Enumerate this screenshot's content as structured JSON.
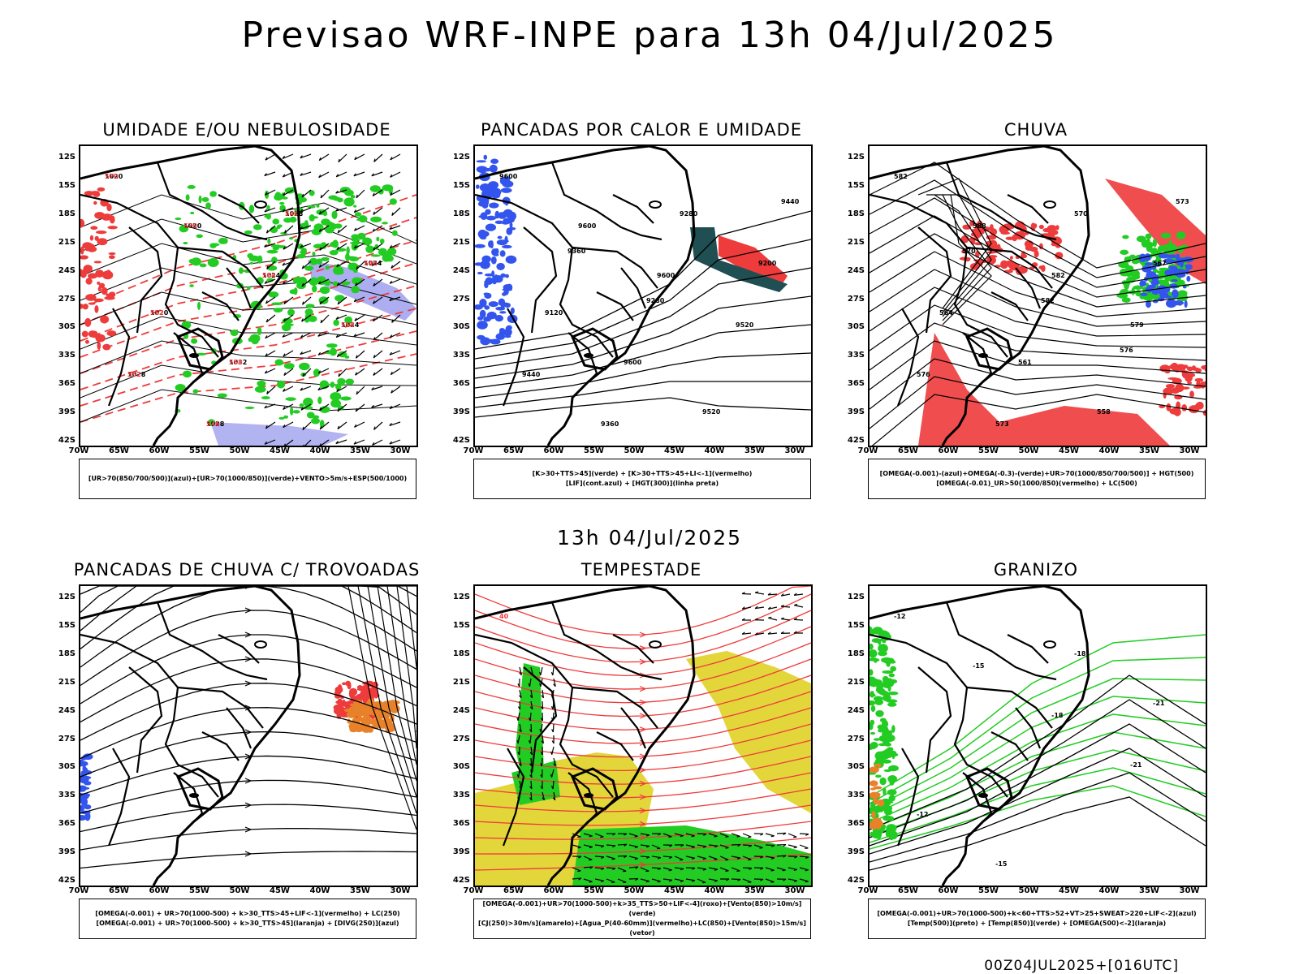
{
  "header": {
    "title": "Previsao WRF-INPE  para 13h 04/Jul/2025",
    "subtitle": "13h 04/Jul/2025",
    "footer": "00Z04JUL2025+[016UTC]"
  },
  "axes": {
    "lat_labels": [
      "12S",
      "15S",
      "18S",
      "21S",
      "24S",
      "27S",
      "30S",
      "33S",
      "36S",
      "39S",
      "42S"
    ],
    "lon_labels": [
      "70W",
      "65W",
      "60W",
      "55W",
      "50W",
      "45W",
      "40W",
      "35W",
      "30W"
    ]
  },
  "colors": {
    "red": "#ee3b3b",
    "green": "#22cc22",
    "blue": "#3355ee",
    "lavender": "#9fa0ee",
    "darkteal": "#1f4f52",
    "orange": "#e8822a",
    "yellow": "#e3d63a",
    "black": "#000000"
  },
  "panels": [
    {
      "title": "UMIDADE E/OU NEBULOSIDADE",
      "legend": [
        "[UR>70(850/700/500)](azul)+[UR>70(1000/850)](verde)+VENTO>5m/s+ESP(500/1000)"
      ],
      "labels": [
        "1020",
        "1020",
        "1024",
        "1024",
        "1028",
        "1028",
        "1028",
        "1024",
        "1020",
        "1032",
        "570",
        "576",
        "564",
        "558",
        "552",
        "546",
        "540",
        "546",
        "552",
        "558"
      ]
    },
    {
      "title": "PANCADAS POR CALOR E UMIDADE",
      "legend": [
        "[K>30+TTS>45](verde) + [K>30+TTS>45+LI<-1](vermelho)",
        "[LIF](cont.azul) + [HGT(300)](linha preta)"
      ],
      "labels": [
        "9600",
        "9600",
        "9600",
        "9520",
        "9440",
        "9360",
        "9280",
        "9200",
        "9120",
        "9600",
        "9520",
        "9440",
        "9360",
        "9280"
      ]
    },
    {
      "title": "CHUVA",
      "legend": [
        "[OMEGA(-0.001)-(azul)+OMEGA(-0.3)-(verde)+UR>70(1000/850/700/500)] + HGT(500)",
        "[OMEGA(-0.01)_UR>50(1000/850)(vermelho) + LC(500)"
      ],
      "labels": [
        "582",
        "588",
        "582",
        "579",
        "576",
        "573",
        "570",
        "567",
        "564",
        "561",
        "558",
        "573",
        "570",
        "582",
        "576"
      ]
    },
    {
      "title": "PANCADAS DE CHUVA C/ TROVOADAS",
      "legend": [
        "[OMEGA(-0.001) + UR>70(1000-500) + k>30_TTS>45+LIF<-1](vermelho) + LC(250)",
        "[OMEGA(-0.001) + UR>70(1000-500) + k>30_TTS>45](laranja) + [DIVG(250)](azul)"
      ],
      "labels": []
    },
    {
      "title": "TEMPESTADE",
      "legend": [
        "[OMEGA(-0.001)+UR>70(1000-500)+k>35_TTS>50+LIF<-4](roxo)+[Vento(850)>10m/s](verde)",
        "[CJ(250)>30m/s](amarelo)+[Agua_P(40-60mm)](vermelho)+LC(850)+[Vento(850)>15m/s](vetor)"
      ],
      "labels": [
        "40"
      ]
    },
    {
      "title": "GRANIZO",
      "legend": [
        "[OMEGA(-0.001)+UR>70(1000-500)+k<60+TTS>52+VT>25+SWEAT>220+LIF<-2](azul)",
        "[Temp(500)](preto) + [Temp(850)](verde) + [OMEGA(500)<-2](laranja)"
      ],
      "labels": [
        "-12",
        "-15",
        "-18",
        "-21",
        "-12",
        "-15",
        "-18",
        "-21"
      ]
    }
  ]
}
